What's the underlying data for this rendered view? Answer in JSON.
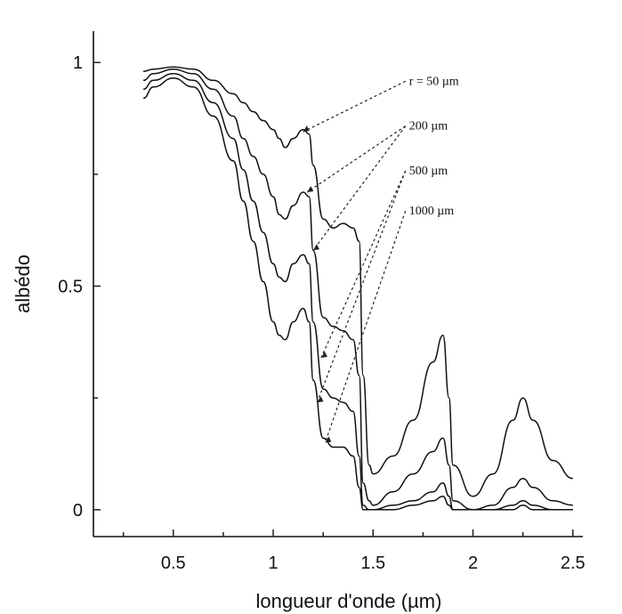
{
  "chart_data": {
    "type": "line",
    "title": "",
    "xlabel": "longueur d'onde (µm)",
    "ylabel": "albédo",
    "xlim": [
      0.1,
      2.55
    ],
    "ylim": [
      -0.06,
      1.07
    ],
    "xticks": [
      0.5,
      1,
      1.5,
      2,
      2.5
    ],
    "xtick_labels": [
      "0.5",
      "1",
      "1.5",
      "2",
      "2.5"
    ],
    "yticks": [
      0,
      0.5,
      1
    ],
    "ytick_labels": [
      "0",
      "0.5",
      "1"
    ],
    "grid": false,
    "legend": "none",
    "series": [
      {
        "name": "r = 50 µm",
        "x": [
          0.35,
          0.4,
          0.5,
          0.6,
          0.7,
          0.8,
          0.85,
          0.9,
          0.95,
          1.0,
          1.03,
          1.06,
          1.1,
          1.15,
          1.18,
          1.2,
          1.25,
          1.3,
          1.35,
          1.4,
          1.43,
          1.45,
          1.48,
          1.5,
          1.6,
          1.7,
          1.8,
          1.85,
          1.88,
          1.9,
          2.0,
          2.1,
          2.2,
          2.25,
          2.3,
          2.4,
          2.5
        ],
        "y": [
          0.98,
          0.985,
          0.99,
          0.985,
          0.96,
          0.93,
          0.91,
          0.89,
          0.87,
          0.85,
          0.83,
          0.81,
          0.83,
          0.85,
          0.84,
          0.77,
          0.65,
          0.63,
          0.64,
          0.63,
          0.6,
          0.3,
          0.1,
          0.08,
          0.12,
          0.2,
          0.33,
          0.39,
          0.25,
          0.1,
          0.03,
          0.08,
          0.2,
          0.25,
          0.2,
          0.11,
          0.07
        ]
      },
      {
        "name": "200 µm",
        "x": [
          0.35,
          0.4,
          0.5,
          0.6,
          0.7,
          0.8,
          0.85,
          0.9,
          0.95,
          1.0,
          1.03,
          1.06,
          1.1,
          1.15,
          1.18,
          1.2,
          1.25,
          1.3,
          1.35,
          1.4,
          1.43,
          1.45,
          1.48,
          1.5,
          1.6,
          1.7,
          1.8,
          1.85,
          1.88,
          1.9,
          2.0,
          2.1,
          2.2,
          2.25,
          2.3,
          2.4,
          2.5
        ],
        "y": [
          0.96,
          0.975,
          0.985,
          0.975,
          0.94,
          0.88,
          0.83,
          0.79,
          0.75,
          0.7,
          0.66,
          0.65,
          0.68,
          0.71,
          0.7,
          0.58,
          0.43,
          0.41,
          0.4,
          0.38,
          0.3,
          0.06,
          0.02,
          0.01,
          0.04,
          0.08,
          0.13,
          0.16,
          0.1,
          0.02,
          0.0,
          0.01,
          0.05,
          0.07,
          0.05,
          0.02,
          0.01
        ]
      },
      {
        "name": "500 µm",
        "x": [
          0.35,
          0.4,
          0.5,
          0.6,
          0.7,
          0.8,
          0.85,
          0.9,
          0.95,
          1.0,
          1.03,
          1.06,
          1.1,
          1.15,
          1.18,
          1.2,
          1.25,
          1.3,
          1.35,
          1.4,
          1.43,
          1.45,
          1.48,
          1.5,
          1.6,
          1.7,
          1.8,
          1.85,
          1.88,
          1.9,
          2.0,
          2.1,
          2.2,
          2.25,
          2.3,
          2.4,
          2.5
        ],
        "y": [
          0.94,
          0.96,
          0.975,
          0.96,
          0.91,
          0.83,
          0.76,
          0.69,
          0.62,
          0.55,
          0.52,
          0.51,
          0.55,
          0.57,
          0.55,
          0.42,
          0.27,
          0.25,
          0.24,
          0.22,
          0.12,
          0.01,
          0.0,
          0.0,
          0.01,
          0.02,
          0.04,
          0.06,
          0.03,
          0.0,
          0.0,
          0.0,
          0.01,
          0.02,
          0.01,
          0.0,
          0.0
        ]
      },
      {
        "name": "1000 µm",
        "x": [
          0.35,
          0.4,
          0.5,
          0.6,
          0.7,
          0.8,
          0.85,
          0.9,
          0.95,
          1.0,
          1.03,
          1.06,
          1.1,
          1.15,
          1.18,
          1.2,
          1.25,
          1.3,
          1.35,
          1.4,
          1.43,
          1.45,
          1.48,
          1.5,
          1.6,
          1.7,
          1.8,
          1.85,
          1.88,
          1.9,
          2.0,
          2.1,
          2.2,
          2.25,
          2.3,
          2.4,
          2.5
        ],
        "y": [
          0.92,
          0.945,
          0.965,
          0.945,
          0.88,
          0.78,
          0.69,
          0.6,
          0.51,
          0.42,
          0.39,
          0.38,
          0.42,
          0.45,
          0.42,
          0.29,
          0.16,
          0.14,
          0.14,
          0.12,
          0.05,
          0.0,
          0.0,
          0.0,
          0.0,
          0.01,
          0.02,
          0.03,
          0.01,
          0.0,
          0.0,
          0.0,
          0.0,
          0.01,
          0.0,
          0.0,
          0.0
        ]
      }
    ],
    "annotations": [
      {
        "text": "r = 50 µm",
        "label_at": [
          1.68,
          0.95
        ],
        "points_to": [
          [
            1.15,
            0.845
          ]
        ]
      },
      {
        "text": "200 µm",
        "label_at": [
          1.68,
          0.85
        ],
        "points_to": [
          [
            1.17,
            0.71
          ],
          [
            1.2,
            0.58
          ]
        ]
      },
      {
        "text": "500 µm",
        "label_at": [
          1.68,
          0.75
        ],
        "points_to": [
          [
            1.24,
            0.34
          ],
          [
            1.22,
            0.24
          ]
        ]
      },
      {
        "text": "1000 µm",
        "label_at": [
          1.68,
          0.66
        ],
        "points_to": [
          [
            1.26,
            0.15
          ]
        ]
      }
    ]
  }
}
